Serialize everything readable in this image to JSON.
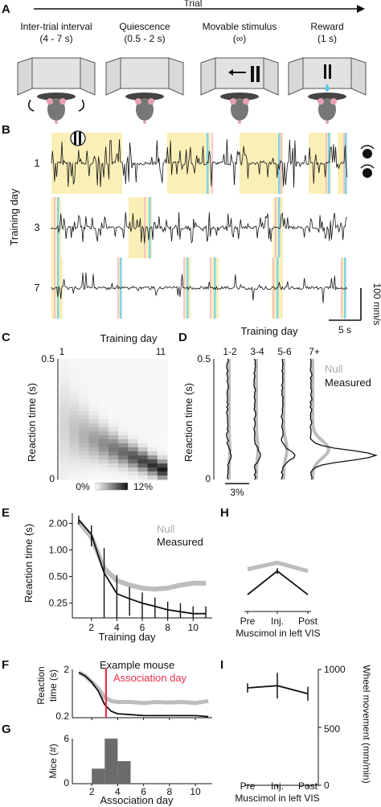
{
  "panels": {
    "A": {
      "letter": "A",
      "arrow_label": "Trial",
      "stages": [
        {
          "title": "Inter-trial interval",
          "sub": "(4 - 7 s)"
        },
        {
          "title": "Quiescence",
          "sub": "(0.5 - 2 s)"
        },
        {
          "title": "Movable stimulus",
          "sub": "(∞)"
        },
        {
          "title": "Reward",
          "sub": "(1 s)"
        }
      ]
    },
    "B": {
      "letter": "B",
      "ylabel": "Training day",
      "days": [
        "1",
        "3",
        "7"
      ],
      "scale_y": "100 mm/s",
      "scale_x": "5 s"
    },
    "C": {
      "letter": "C",
      "title": "Training day",
      "x_start": "1",
      "x_end": "11",
      "ylabel": "Reaction time (s)",
      "y_top": "0.5",
      "y_bottom": "0",
      "cbar_min": "0%",
      "cbar_max": "12%"
    },
    "D": {
      "letter": "D",
      "title": "Training day",
      "groups": [
        "1-2",
        "3-4",
        "5-6",
        "7+"
      ],
      "ylabel": "Reaction time (s)",
      "y_top": "0.5",
      "y_bottom": "0",
      "legend_null": "Null",
      "legend_measured": "Measured",
      "scale": "3%"
    },
    "E": {
      "letter": "E",
      "xlabel": "Training day",
      "ylabel": "Reaction time (s)",
      "legend_null": "Null",
      "legend_measured": "Measured"
    },
    "F": {
      "letter": "F",
      "ylabel1": "Reaction",
      "ylabel2": "time (s)",
      "annotation1": "Example mouse",
      "annotation2": "Association day",
      "y_ticks": [
        "2",
        "0.2"
      ]
    },
    "G": {
      "letter": "G",
      "ylabel": "Mice (#)",
      "xlabel": "Association day",
      "y_ticks": [
        "6",
        "0"
      ],
      "x_ticks": [
        "2",
        "4",
        "6",
        "8",
        "10"
      ]
    },
    "H": {
      "letter": "H",
      "xlabel": "Muscimol in left VIS",
      "x_ticks": [
        "Pre",
        "Inj.",
        "Post"
      ]
    },
    "I": {
      "letter": "I",
      "xlabel": "Muscimol in left VIS",
      "x_ticks": [
        "Pre",
        "Inj.",
        "Post"
      ],
      "ylabel": "Wheel movement (mm/min)",
      "y_ticks": [
        "1000",
        "500",
        "0"
      ]
    }
  },
  "chart_data": [
    {
      "panel": "E",
      "type": "line",
      "xlabel": "Training day",
      "ylabel": "Reaction time (s)",
      "x_ticks": [
        "2",
        "4",
        "6",
        "8",
        "10"
      ],
      "y_ticks": [
        "2.00",
        "1.00",
        "0.50",
        "0.25"
      ],
      "ylim": [
        0.17,
        2.6
      ],
      "y_scale": "log",
      "x": [
        1,
        2,
        3,
        4,
        5,
        6,
        7,
        8,
        9,
        10,
        11
      ],
      "series": [
        {
          "name": "Measured",
          "color": "#111111",
          "values": [
            2.2,
            1.5,
            0.55,
            0.32,
            0.28,
            0.25,
            0.23,
            0.21,
            0.2,
            0.19,
            0.19
          ],
          "err": [
            0.25,
            0.4,
            0.5,
            0.2,
            0.1,
            0.08,
            0.06,
            0.05,
            0.05,
            0.04,
            0.04
          ]
        },
        {
          "name": "Null",
          "color": "#bdbdbd",
          "values": [
            2.1,
            1.4,
            0.62,
            0.45,
            0.4,
            0.37,
            0.36,
            0.37,
            0.4,
            0.42,
            0.42
          ]
        }
      ]
    },
    {
      "panel": "F",
      "type": "line",
      "x_ticks": [
        "2",
        "4",
        "6",
        "8",
        "10"
      ],
      "y_ticks": [
        "2",
        "0.2"
      ],
      "x": [
        1,
        1.5,
        2,
        2.5,
        3,
        3.5,
        4,
        5,
        6,
        7,
        8,
        9,
        10,
        11
      ],
      "series": [
        {
          "name": "",
          "color": "#111111",
          "values": [
            1.8,
            1.5,
            1.1,
            0.7,
            0.35,
            0.25,
            0.22,
            0.21,
            0.2,
            0.2,
            0.2,
            0.2,
            0.2,
            0.19
          ]
        },
        {
          "name": "",
          "color": "#bdbdbd",
          "values": [
            1.8,
            1.5,
            1.1,
            0.8,
            0.5,
            0.42,
            0.4,
            0.4,
            0.38,
            0.4,
            0.39,
            0.4,
            0.38,
            0.42
          ]
        }
      ],
      "association_day": 3.1,
      "association_color": "#e8304a"
    },
    {
      "panel": "G",
      "type": "bar",
      "xlabel": "Association day",
      "ylabel": "Mice (#)",
      "x": [
        2.5,
        3.5,
        4.5
      ],
      "values": [
        2,
        6,
        3
      ],
      "bar_width": 1,
      "color": "#6b6b6b",
      "ylim": [
        0,
        6
      ],
      "xlim": [
        1,
        11
      ]
    },
    {
      "panel": "H",
      "type": "line",
      "categories": [
        "Pre",
        "Inj.",
        "Post"
      ],
      "series": [
        {
          "name": "",
          "color": "#111111",
          "values": [
            0.18,
            0.43,
            0.18
          ],
          "err": [
            0,
            0.03,
            0
          ]
        },
        {
          "name": "",
          "color": "#bdbdbd",
          "values": [
            0.45,
            0.52,
            0.43
          ]
        }
      ]
    },
    {
      "panel": "I",
      "type": "line",
      "ylabel": "Wheel movement (mm/min)",
      "categories": [
        "Pre",
        "Inj.",
        "Post"
      ],
      "ylim": [
        0,
        1000
      ],
      "y_ticks": [
        0,
        500,
        1000
      ],
      "series": [
        {
          "name": "",
          "color": "#111111",
          "values": [
            840,
            860,
            790
          ],
          "err": [
            40,
            110,
            60
          ]
        }
      ]
    }
  ]
}
